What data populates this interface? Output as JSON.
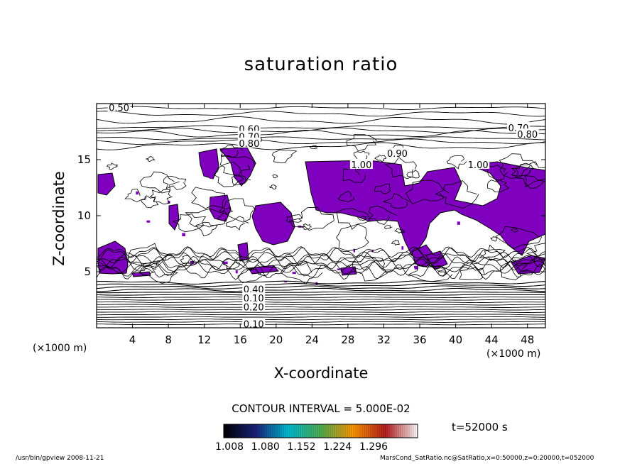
{
  "chart_data": {
    "type": "heatmap",
    "title": "saturation ratio",
    "xlabel": "X-coordinate",
    "ylabel": "Z-coordinate",
    "x_unit_label": "(×1000 m)",
    "x_ticks": [
      4,
      8,
      12,
      16,
      20,
      24,
      28,
      32,
      36,
      40,
      44,
      48
    ],
    "y_ticks": [
      5,
      10,
      15
    ],
    "xlim": [
      0,
      50
    ],
    "ylim": [
      0,
      20
    ],
    "contour_labels": [
      {
        "text": "0.50",
        "x": 2.5,
        "y": 19.6
      },
      {
        "text": "0.60",
        "x": 17.0,
        "y": 17.7
      },
      {
        "text": "0.70",
        "x": 17.0,
        "y": 17.0
      },
      {
        "text": "0.80",
        "x": 17.0,
        "y": 16.4
      },
      {
        "text": "0.70",
        "x": 47.0,
        "y": 17.8
      },
      {
        "text": "0.80",
        "x": 48.0,
        "y": 17.2
      },
      {
        "text": "0.90",
        "x": 33.5,
        "y": 15.5
      },
      {
        "text": "1.00",
        "x": 29.5,
        "y": 14.5
      },
      {
        "text": "1.00",
        "x": 42.5,
        "y": 14.5
      },
      {
        "text": "0.40",
        "x": 17.5,
        "y": 3.4
      },
      {
        "text": "0.10",
        "x": 17.5,
        "y": 2.6
      },
      {
        "text": "0.20",
        "x": 17.5,
        "y": 1.8
      },
      {
        "text": "0.10",
        "x": 17.5,
        "y": 0.3
      }
    ],
    "contour_interval": "CONTOUR INTERVAL = 5.000E-02",
    "colorbar": {
      "tick_labels": [
        "1.008",
        "1.080",
        "1.152",
        "1.224",
        "1.296"
      ],
      "fill_color": "#7f00bf",
      "colors": [
        "#000000",
        "#1a237e",
        "#00bcd4",
        "#4caf50",
        "#ff9800",
        "#b71c1c",
        "#ffffff"
      ]
    },
    "time_label": "t=52000 s"
  },
  "footer": {
    "left": "/usr/bin/gpview   2008-11-21",
    "right": "MarsCond_SatRatio.nc@SatRatio,x=0:50000,z=0:20000,t=052000"
  }
}
